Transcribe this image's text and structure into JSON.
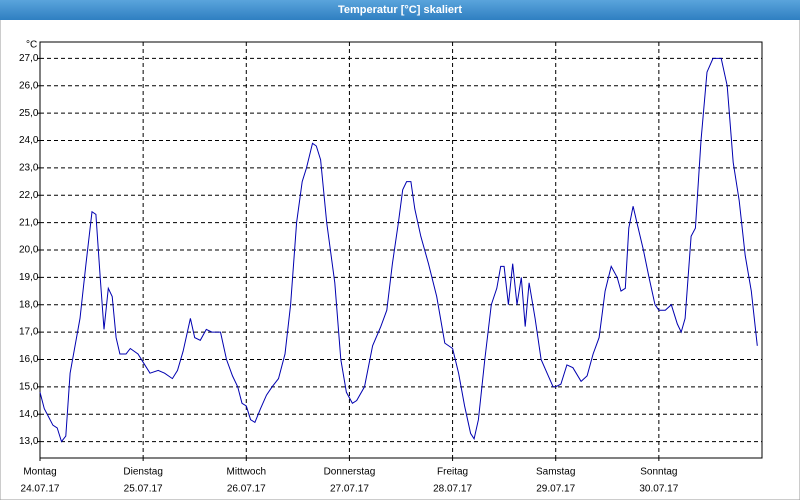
{
  "chart_data": {
    "type": "line",
    "title": "Temperatur [°C] skaliert",
    "ylabel": "°C",
    "xlim": [
      0,
      168
    ],
    "ylim": [
      12.4,
      27.6
    ],
    "xticks": [
      {
        "value": 0,
        "label": "Montag"
      },
      {
        "value": 24,
        "label": "Dienstag"
      },
      {
        "value": 48,
        "label": "Mittwoch"
      },
      {
        "value": 72,
        "label": "Donnerstag"
      },
      {
        "value": 96,
        "label": "Freitag"
      },
      {
        "value": 120,
        "label": "Samstag"
      },
      {
        "value": 144,
        "label": "Sonntag"
      }
    ],
    "xtick_dates": [
      "24.07.17",
      "25.07.17",
      "26.07.17",
      "27.07.17",
      "28.07.17",
      "29.07.17",
      "30.07.17"
    ],
    "yticks": [
      {
        "value": 13,
        "label": "13,0"
      },
      {
        "value": 14,
        "label": "14,0"
      },
      {
        "value": 15,
        "label": "15,0"
      },
      {
        "value": 16,
        "label": "16,0"
      },
      {
        "value": 17,
        "label": "17,0"
      },
      {
        "value": 18,
        "label": "18,0"
      },
      {
        "value": 19,
        "label": "19,0"
      },
      {
        "value": 20,
        "label": "20,0"
      },
      {
        "value": 21,
        "label": "21,0"
      },
      {
        "value": 22,
        "label": "22,0"
      },
      {
        "value": 23,
        "label": "23,0"
      },
      {
        "value": 24,
        "label": "24,0"
      },
      {
        "value": 25,
        "label": "25,0"
      },
      {
        "value": 26,
        "label": "26,0"
      },
      {
        "value": 27,
        "label": "27,0"
      }
    ],
    "grid": true,
    "color": "#0000b0",
    "x": [
      0,
      1,
      2,
      3,
      4,
      5,
      6,
      7,
      9.3,
      10.7,
      12.1,
      13,
      14,
      14.9,
      15.9,
      16.8,
      17.7,
      18.6,
      20,
      21,
      22.8,
      24,
      25.6,
      27.5,
      29,
      30.8,
      32,
      33.3,
      35,
      36,
      37.3,
      38.7,
      40,
      42,
      43.4,
      44.8,
      46,
      47,
      48,
      49,
      50,
      51.3,
      52.7,
      54,
      55.5,
      57,
      58.3,
      59.7,
      61,
      62,
      63.4,
      64.3,
      65.3,
      66.7,
      68.6,
      70,
      71.3,
      72.7,
      73.7,
      75.5,
      77.4,
      79.3,
      80.7,
      82,
      83.4,
      84.4,
      85.3,
      86.3,
      87.2,
      88.6,
      90.4,
      92.3,
      94.2,
      96,
      97.4,
      98.8,
      100.2,
      101,
      102,
      103.5,
      105,
      106.3,
      107.2,
      108,
      109,
      110,
      111,
      112,
      112.9,
      113.8,
      115.2,
      116.6,
      118,
      119.4,
      120,
      121.2,
      122.6,
      124,
      125.9,
      127.3,
      128.7,
      130.1,
      131.5,
      132.9,
      134.3,
      135.2,
      136.2,
      137,
      138,
      138.9,
      140.4,
      141.7,
      143.1,
      144,
      145.5,
      146.9,
      148.3,
      149.2,
      150.1,
      151.5,
      152.5,
      153.8,
      155.2,
      156.6,
      158.5,
      159.9,
      161.3,
      162.7,
      164.1,
      165.5,
      166.9
    ],
    "values": [
      14.8,
      14.2,
      13.9,
      13.6,
      13.5,
      13.0,
      13.2,
      15.5,
      17.5,
      19.5,
      21.4,
      21.3,
      19.0,
      17.1,
      18.6,
      18.3,
      16.8,
      16.2,
      16.2,
      16.4,
      16.2,
      15.9,
      15.5,
      15.6,
      15.5,
      15.3,
      15.6,
      16.3,
      17.5,
      16.8,
      16.7,
      17.1,
      17.0,
      17.0,
      16.0,
      15.4,
      15.0,
      14.4,
      14.3,
      13.8,
      13.7,
      14.2,
      14.7,
      15.0,
      15.3,
      16.2,
      18.0,
      21.0,
      22.5,
      23.0,
      23.9,
      23.8,
      23.3,
      21.0,
      18.8,
      16.0,
      14.8,
      14.4,
      14.5,
      15.0,
      16.5,
      17.2,
      17.8,
      19.5,
      21.0,
      22.2,
      22.5,
      22.5,
      21.5,
      20.5,
      19.5,
      18.3,
      16.6,
      16.4,
      15.5,
      14.3,
      13.3,
      13.1,
      13.8,
      16.0,
      18.0,
      18.6,
      19.4,
      19.4,
      18.0,
      19.5,
      18.0,
      19.0,
      17.2,
      18.8,
      17.5,
      16.0,
      15.5,
      15.0,
      15.0,
      15.1,
      15.8,
      15.7,
      15.2,
      15.4,
      16.2,
      16.8,
      18.5,
      19.4,
      19.0,
      18.5,
      18.6,
      20.8,
      21.6,
      21.0,
      20.0,
      19.0,
      18.0,
      17.8,
      17.8,
      18.0,
      17.3,
      17.0,
      17.5,
      20.5,
      20.8,
      24.0,
      26.5,
      27.0,
      27.0,
      26.0,
      23.2,
      21.8,
      19.8,
      18.5,
      16.5
    ]
  }
}
